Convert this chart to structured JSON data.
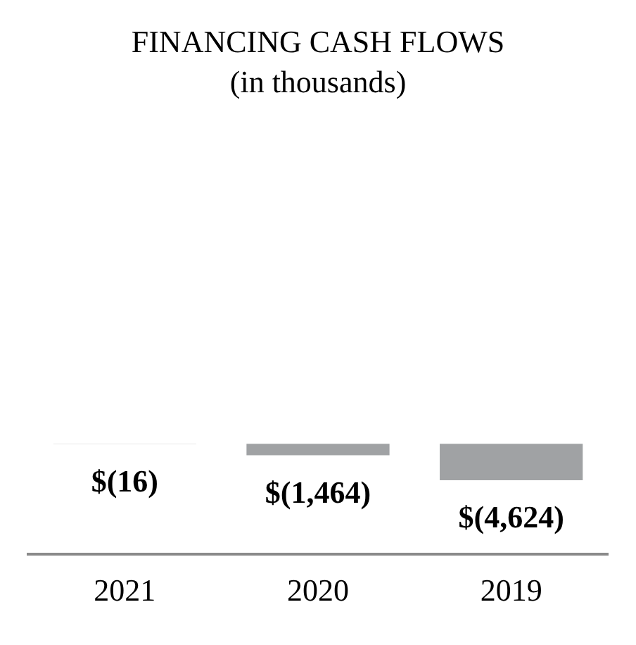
{
  "chart_data": {
    "type": "bar",
    "title": "FINANCING CASH FLOWS",
    "subtitle": "(in thousands)",
    "categories": [
      "2021",
      "2020",
      "2019"
    ],
    "values": [
      -16,
      -1464,
      -4624
    ],
    "value_labels": [
      "$(16)",
      "$(1,464)",
      "$(4,624)"
    ],
    "color": "#a0a2a4",
    "grid": false,
    "legend": false
  }
}
